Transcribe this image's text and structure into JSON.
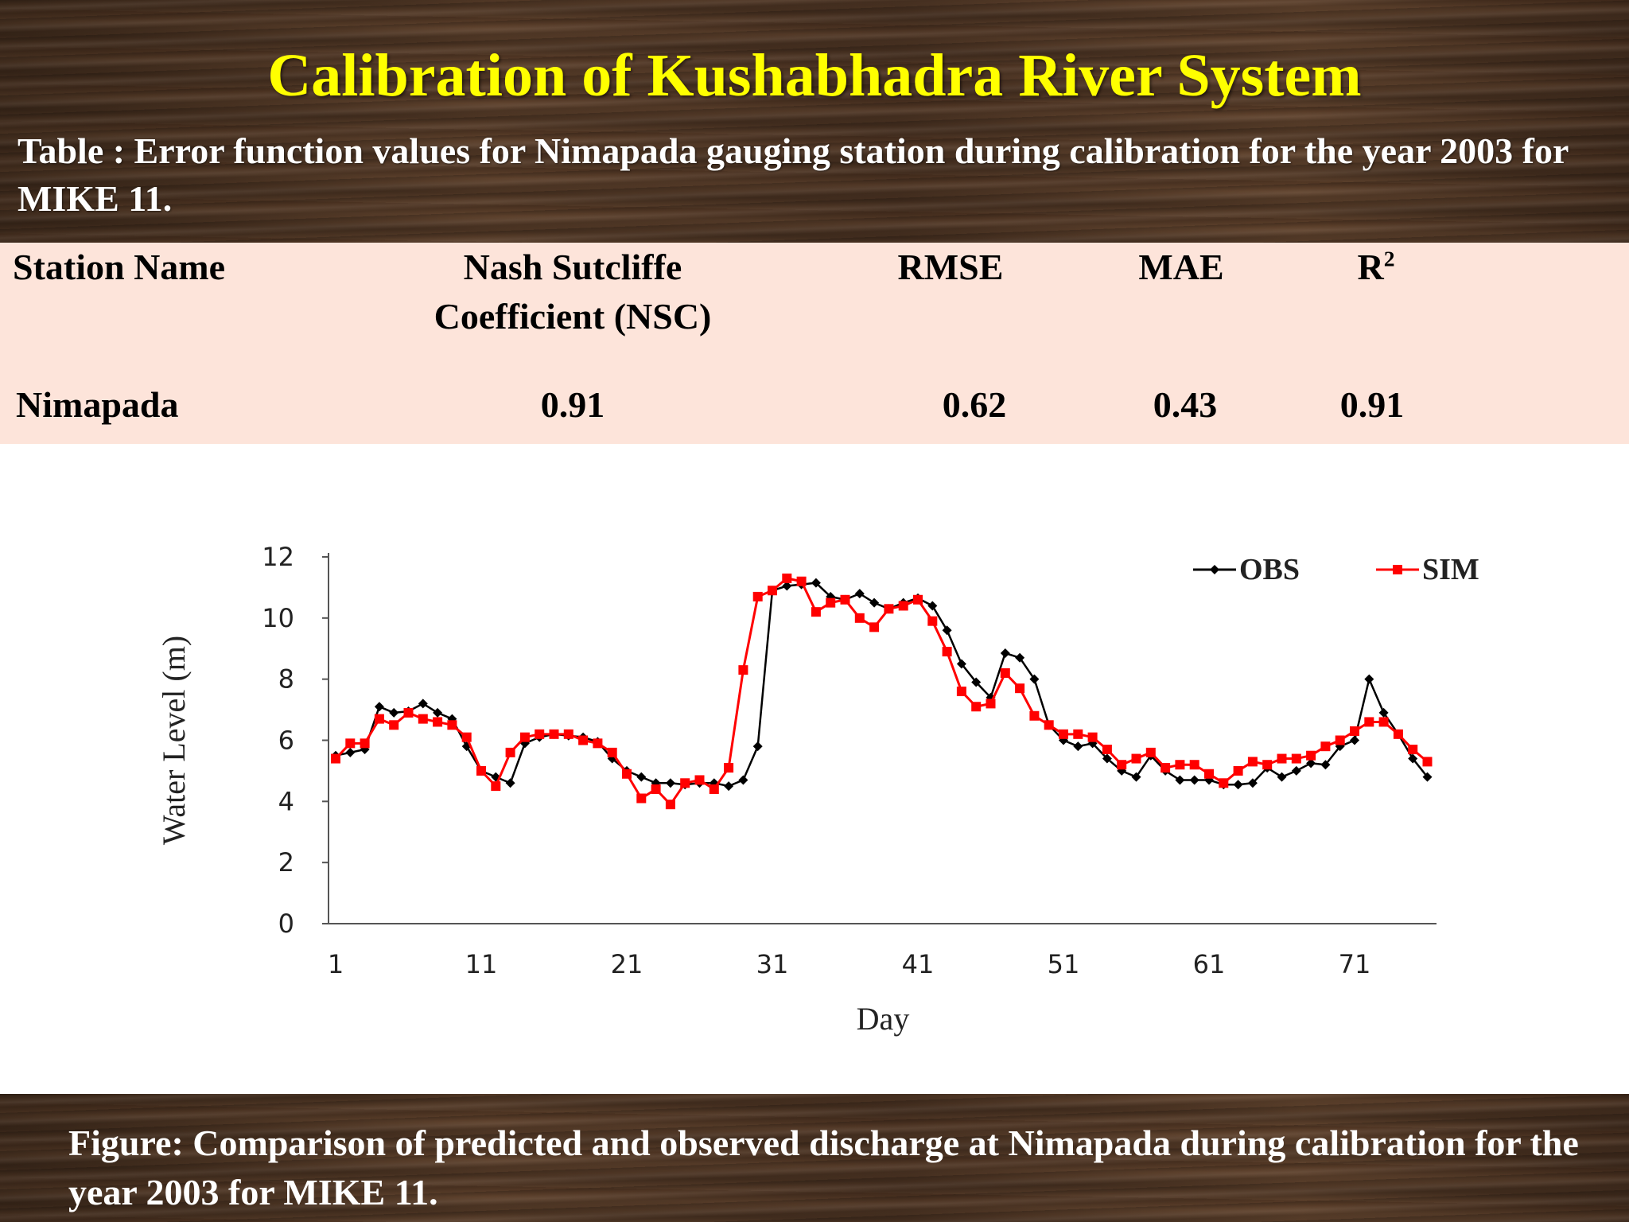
{
  "slide": {
    "title": "Calibration of Kushabhadra River System",
    "table_caption": "Table : Error function values for Nimapada gauging station during calibration for the year 2003 for MIKE 11.",
    "figure_caption": "Figure:  Comparison of predicted and observed discharge at Nimapada during calibration for the year 2003 for MIKE 11."
  },
  "table": {
    "headers": {
      "station": "Station Name",
      "nsc_line1": "Nash Sutcliffe",
      "nsc_line2": "Coefficient (NSC)",
      "rmse": "RMSE",
      "mae": "MAE",
      "r2_base": "R",
      "r2_sup": "2"
    },
    "row": {
      "station": "Nimapada",
      "nsc": "0.91",
      "rmse": "0.62",
      "mae": "0.43",
      "r2": "0.91"
    }
  },
  "colors": {
    "title": "#ffff00",
    "table_bg": "#fde4da",
    "obs": "#000000",
    "sim": "#ff0000"
  },
  "chart_data": {
    "type": "line",
    "xlabel": "Day",
    "ylabel": "Water Level (m)",
    "ylim": [
      0,
      12
    ],
    "yticks": [
      "0",
      "2",
      "4",
      "6",
      "8",
      "10",
      "12"
    ],
    "xticks": [
      "1",
      "11",
      "21",
      "31",
      "41",
      "51",
      "61",
      "71"
    ],
    "legend_position": "top-right",
    "grid": false,
    "x": [
      1,
      2,
      3,
      4,
      5,
      6,
      7,
      8,
      9,
      10,
      11,
      12,
      13,
      14,
      15,
      16,
      17,
      18,
      19,
      20,
      21,
      22,
      23,
      24,
      25,
      26,
      27,
      28,
      29,
      30,
      31,
      32,
      33,
      34,
      35,
      36,
      37,
      38,
      39,
      40,
      41,
      42,
      43,
      44,
      45,
      46,
      47,
      48,
      49,
      50,
      51,
      52,
      53,
      54,
      55,
      56,
      57,
      58,
      59,
      60,
      61,
      62,
      63,
      64,
      65,
      66,
      67,
      68,
      69,
      70,
      71,
      72,
      73,
      74,
      75,
      76
    ],
    "series": [
      {
        "name": "OBS",
        "color": "#000000",
        "marker": "diamond",
        "values": [
          5.5,
          5.6,
          5.7,
          7.1,
          6.9,
          6.95,
          7.2,
          6.9,
          6.7,
          5.8,
          5.0,
          4.8,
          4.6,
          5.9,
          6.1,
          6.2,
          6.15,
          6.1,
          5.95,
          5.4,
          5.0,
          4.8,
          4.6,
          4.6,
          4.55,
          4.6,
          4.6,
          4.5,
          4.7,
          5.8,
          10.9,
          11.05,
          11.1,
          11.15,
          10.7,
          10.6,
          10.8,
          10.5,
          10.3,
          10.5,
          10.65,
          10.4,
          9.6,
          8.5,
          7.9,
          7.4,
          8.85,
          8.7,
          8.0,
          6.5,
          6.0,
          5.8,
          5.9,
          5.4,
          5.0,
          4.8,
          5.5,
          5.0,
          4.7,
          4.7,
          4.7,
          4.55,
          4.55,
          4.6,
          5.1,
          4.8,
          5.0,
          5.25,
          5.2,
          5.8,
          6.0,
          8.0,
          6.9,
          6.2,
          5.4,
          4.8
        ]
      },
      {
        "name": "SIM",
        "color": "#ff0000",
        "marker": "square",
        "values": [
          5.4,
          5.9,
          5.9,
          6.7,
          6.5,
          6.9,
          6.7,
          6.6,
          6.5,
          6.1,
          5.0,
          4.5,
          5.6,
          6.1,
          6.2,
          6.2,
          6.2,
          6.0,
          5.9,
          5.6,
          4.9,
          4.1,
          4.4,
          3.9,
          4.6,
          4.7,
          4.4,
          5.1,
          8.3,
          10.7,
          10.9,
          11.3,
          11.2,
          10.2,
          10.5,
          10.6,
          10.0,
          9.7,
          10.3,
          10.4,
          10.6,
          9.9,
          8.9,
          7.6,
          7.1,
          7.2,
          8.2,
          7.7,
          6.8,
          6.5,
          6.2,
          6.2,
          6.1,
          5.7,
          5.2,
          5.4,
          5.6,
          5.1,
          5.2,
          5.2,
          4.9,
          4.6,
          5.0,
          5.3,
          5.2,
          5.4,
          5.4,
          5.5,
          5.8,
          6.0,
          6.3,
          6.6,
          6.6,
          6.2,
          5.7,
          5.3
        ]
      }
    ]
  }
}
